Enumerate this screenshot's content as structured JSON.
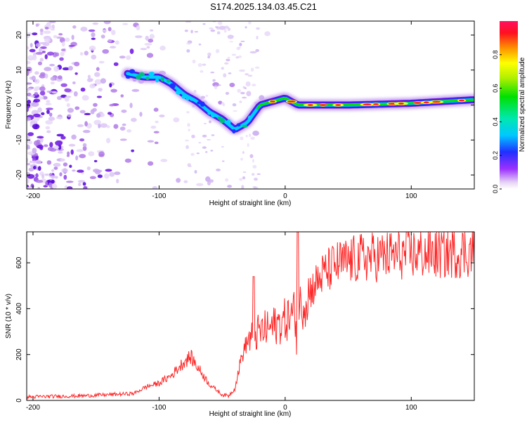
{
  "title": "S174.2025.134.03.45.C21",
  "charts": {
    "spectrogram": {
      "type": "heatmap",
      "xlabel": "Height of straight line (km)",
      "ylabel": "Frequency (Hz)",
      "xlim": [
        -205,
        150
      ],
      "ylim": [
        -24,
        24
      ],
      "x_ticks": [
        -200,
        -100,
        0,
        100
      ],
      "y_ticks": [
        -20,
        -10,
        0,
        10,
        20
      ],
      "colorbar_label": "Normalized spectral amplitude",
      "colorbar_ticks": [
        0.0,
        0.2,
        0.4,
        0.6,
        0.8
      ],
      "colorbar_range": [
        0,
        1
      ],
      "ridge": [
        {
          "x": -125,
          "y": 9
        },
        {
          "x": -112,
          "y": 8
        },
        {
          "x": -100,
          "y": 8
        },
        {
          "x": -90,
          "y": 6
        },
        {
          "x": -80,
          "y": 3
        },
        {
          "x": -70,
          "y": 1
        },
        {
          "x": -60,
          "y": -2
        },
        {
          "x": -50,
          "y": -4
        },
        {
          "x": -40,
          "y": -7
        },
        {
          "x": -30,
          "y": -5
        },
        {
          "x": -20,
          "y": 0
        },
        {
          "x": -10,
          "y": 1
        },
        {
          "x": 0,
          "y": 2
        },
        {
          "x": 10,
          "y": 0
        },
        {
          "x": 50,
          "y": 0
        },
        {
          "x": 100,
          "y": 0.5
        },
        {
          "x": 150,
          "y": 1.5
        }
      ]
    },
    "snr": {
      "type": "line",
      "xlabel": "Height of straight line (km)",
      "ylabel": "SNR (10 * v/v)",
      "xlim": [
        -205,
        150
      ],
      "ylim": [
        0,
        735
      ],
      "x_ticks": [
        -200,
        -100,
        0,
        100
      ],
      "y_ticks": [
        0,
        200,
        400,
        600
      ],
      "color": "#ff0000",
      "series": [
        {
          "x": -205,
          "y": 15
        },
        {
          "x": -180,
          "y": 18
        },
        {
          "x": -160,
          "y": 20
        },
        {
          "x": -140,
          "y": 25
        },
        {
          "x": -120,
          "y": 30
        },
        {
          "x": -110,
          "y": 60
        },
        {
          "x": -100,
          "y": 75
        },
        {
          "x": -90,
          "y": 110
        },
        {
          "x": -80,
          "y": 170
        },
        {
          "x": -75,
          "y": 190
        },
        {
          "x": -70,
          "y": 150
        },
        {
          "x": -60,
          "y": 70
        },
        {
          "x": -50,
          "y": 25
        },
        {
          "x": -45,
          "y": 20
        },
        {
          "x": -40,
          "y": 50
        },
        {
          "x": -35,
          "y": 180
        },
        {
          "x": -30,
          "y": 260
        },
        {
          "x": -20,
          "y": 300
        },
        {
          "x": -10,
          "y": 320
        },
        {
          "x": 0,
          "y": 350
        },
        {
          "x": 10,
          "y": 390
        },
        {
          "x": 20,
          "y": 480
        },
        {
          "x": 30,
          "y": 550
        },
        {
          "x": 40,
          "y": 590
        },
        {
          "x": 60,
          "y": 620
        },
        {
          "x": 80,
          "y": 630
        },
        {
          "x": 100,
          "y": 640
        },
        {
          "x": 120,
          "y": 640
        },
        {
          "x": 150,
          "y": 650
        }
      ]
    }
  }
}
